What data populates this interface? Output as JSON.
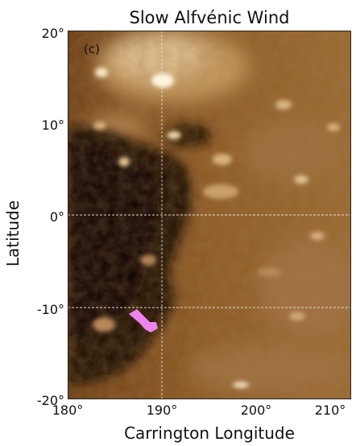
{
  "figure": {
    "title": "Slow Alfvénic Wind",
    "panel_label": "(c)",
    "xlabel": "Carrington Longitude",
    "ylabel": "Latitude",
    "xticks": [
      "180°",
      "190°",
      "200°",
      "210°"
    ],
    "yticks": [
      "20°",
      "10°",
      "0°",
      "-10°",
      "-20°"
    ],
    "xlim": [
      180,
      210
    ],
    "ylim": [
      -20,
      20
    ],
    "colors": {
      "dark": "#1a0c04",
      "mid": "#8a5520",
      "bright": "#f2dfb8",
      "highlight": "#ee82ee",
      "grid": "#f0e6d6"
    }
  }
}
